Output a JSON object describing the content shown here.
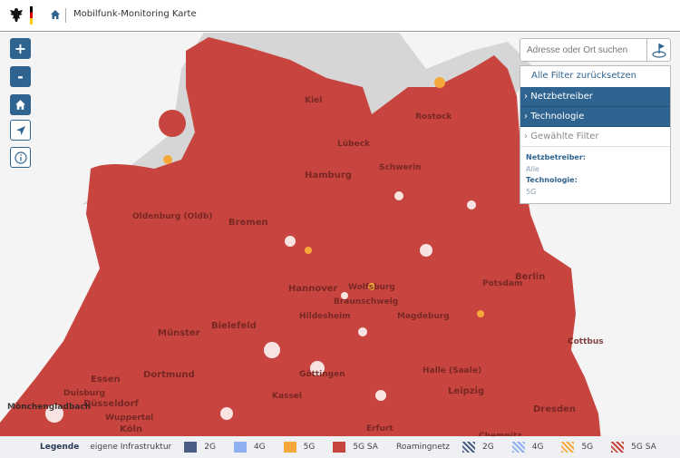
{
  "header": {
    "title": "Mobilfunk-Monitoring Karte"
  },
  "map": {
    "controls": {
      "zoom_in": "+",
      "zoom_out": "-"
    },
    "cities": [
      "Kiel",
      "Lübeck",
      "Hamburg",
      "Bremen",
      "Oldenburg (Oldb)",
      "Rostock",
      "Schwerin",
      "Berlin",
      "Potsdam",
      "Hannover",
      "Wolfsburg",
      "Braunschweig",
      "Hildesheim",
      "Magdeburg",
      "Bielefeld",
      "Münster",
      "Dortmund",
      "Essen",
      "Duisburg",
      "Düsseldorf",
      "Wuppertal",
      "Köln",
      "Mönchengladbach",
      "Kassel",
      "Göttingen",
      "Halle (Saale)",
      "Leipzig",
      "Dresden",
      "Cottbus",
      "Erfurt",
      "Chemnitz"
    ],
    "colors": {
      "coverage": "#c8453f",
      "accent": "#2f6390"
    }
  },
  "search": {
    "placeholder": "Adresse oder Ort suchen"
  },
  "filters": {
    "reset": "Alle Filter zurücksetzen",
    "sections": [
      "Netzbetreiber",
      "Technologie"
    ],
    "chosen": "Gewählte Filter",
    "selected": [
      {
        "key": "Netzbetreiber:",
        "value": "Alle"
      },
      {
        "key": "Technologie:",
        "value": "5G"
      }
    ]
  },
  "legend": {
    "title": "Legende",
    "own": "eigene Infrastruktur",
    "roaming": "Roamingnetz",
    "items": [
      {
        "label": "2G",
        "color": "#4a5d85"
      },
      {
        "label": "4G",
        "color": "#8fb0f0"
      },
      {
        "label": "5G",
        "color": "#f7a83a"
      },
      {
        "label": "5G SA",
        "color": "#c8453f"
      }
    ]
  }
}
